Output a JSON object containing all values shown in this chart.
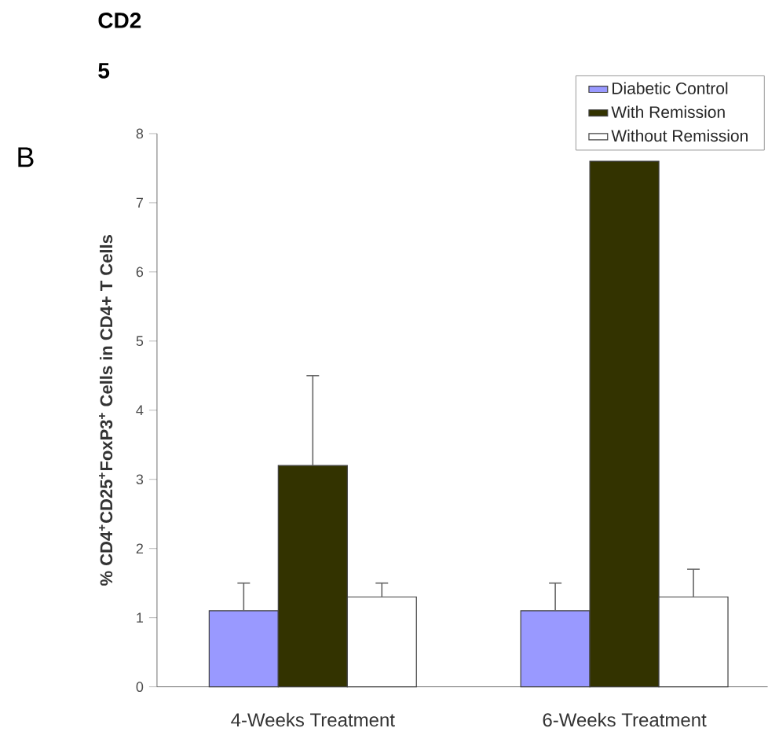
{
  "chart_data": {
    "type": "bar",
    "ylabel": "% CD4$^{+}$CD25$^{+}$FoxP3$^{+}$ Cells in CD4+ T Cells",
    "categories": [
      "4-Weeks Treatment",
      "6-Weeks Treatment"
    ],
    "series": [
      {
        "name": "Diabetic Control",
        "color": "#9999ff",
        "values": [
          1.1,
          1.1
        ],
        "errors": [
          [
            1.1,
            1.5
          ],
          [
            1.1,
            1.5
          ]
        ]
      },
      {
        "name": "With Remission",
        "color": "#333300",
        "values": [
          3.2,
          7.6
        ],
        "errors": [
          [
            3.2,
            4.5
          ],
          null
        ]
      },
      {
        "name": "Without Remission",
        "color": "#ffffff",
        "values": [
          1.3,
          1.3
        ],
        "errors": [
          [
            1.3,
            1.5
          ],
          [
            1.3,
            1.7
          ]
        ]
      }
    ],
    "ylim": [
      0,
      8
    ],
    "yticks": [
      0,
      1,
      2,
      3,
      4,
      5,
      6,
      7,
      8
    ],
    "legend": "top right",
    "grid": false,
    "annotations": [
      "CD2",
      "5",
      "B"
    ]
  }
}
